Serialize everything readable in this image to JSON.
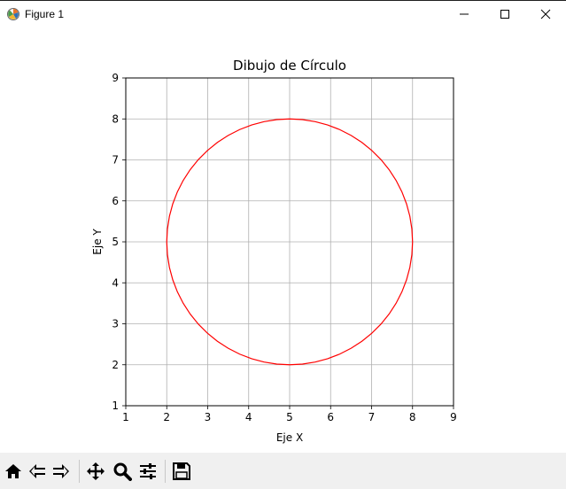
{
  "window": {
    "title": "Figure 1",
    "controls": [
      "minimize-icon",
      "maximize-icon",
      "close-icon"
    ]
  },
  "chart_data": {
    "type": "line",
    "title": "Dibujo de Círculo",
    "xlabel": "Eje X",
    "ylabel": "Eje Y",
    "xlim": [
      1,
      9
    ],
    "ylim": [
      1,
      9
    ],
    "xticks": [
      "1",
      "2",
      "3",
      "4",
      "5",
      "6",
      "7",
      "8",
      "9"
    ],
    "yticks": [
      "1",
      "2",
      "3",
      "4",
      "5",
      "6",
      "7",
      "8",
      "9"
    ],
    "grid": true,
    "series": [
      {
        "shape": "circle",
        "center": [
          5,
          5
        ],
        "radius": 3,
        "color": "#ff0000"
      }
    ]
  },
  "toolbar": {
    "buttons": [
      {
        "name": "home-icon",
        "tooltip": "Reset original view"
      },
      {
        "name": "back-icon",
        "tooltip": "Back to previous view"
      },
      {
        "name": "forward-icon",
        "tooltip": "Forward to next view"
      },
      {
        "name": "pan-icon",
        "tooltip": "Pan axes"
      },
      {
        "name": "zoom-icon",
        "tooltip": "Zoom to rectangle"
      },
      {
        "name": "configure-subplots-icon",
        "tooltip": "Configure subplots"
      },
      {
        "name": "save-icon",
        "tooltip": "Save the figure"
      }
    ]
  }
}
